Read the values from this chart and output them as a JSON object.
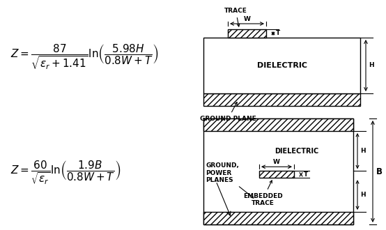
{
  "bg_color": "#ffffff",
  "line_color": "#000000",
  "formula1": "$Z = \\dfrac{87}{\\sqrt{\\varepsilon_r + 1.41}} \\ln\\!\\left( \\dfrac{5.98H}{0.8W + T} \\right)$",
  "formula2": "$Z = \\dfrac{60}{\\sqrt{\\varepsilon_r}} \\ln\\!\\left( \\dfrac{1.9B}{0.8W + T} \\right)$",
  "label_trace": "TRACE",
  "label_dielectric1": "DIELECTRIC",
  "label_ground": "GROUND PLANE",
  "label_dielectric2": "DIELECTRIC",
  "label_ground_power": "GROUND,\nPOWER\nPLANES",
  "label_embedded": "EMBEDDED\nTRACE",
  "label_W": "W",
  "label_T": "T",
  "label_H": "H",
  "label_B": "B",
  "fontsize_formula": 11,
  "fontsize_label": 6.5
}
